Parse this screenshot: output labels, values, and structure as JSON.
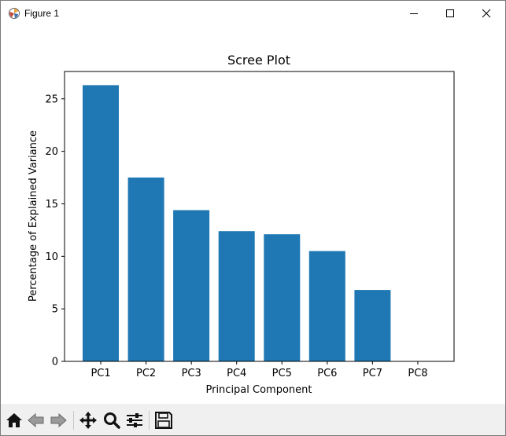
{
  "window": {
    "title": "Figure 1",
    "app_icon": "matplotlib-figure-icon",
    "controls": [
      "minimize-icon",
      "maximize-icon",
      "close-icon"
    ]
  },
  "toolbar": {
    "tools": [
      {
        "name": "home-icon"
      },
      {
        "name": "back-arrow-icon"
      },
      {
        "name": "forward-arrow-icon"
      },
      {
        "name": "pan-move-icon"
      },
      {
        "name": "zoom-magnifier-icon"
      },
      {
        "name": "configure-subplots-icon"
      },
      {
        "name": "save-floppy-icon"
      }
    ]
  },
  "chart_data": {
    "type": "bar",
    "title": "Scree Plot",
    "xlabel": "Principal Component",
    "ylabel": "Percentage of Explained Variance",
    "categories": [
      "PC1",
      "PC2",
      "PC3",
      "PC4",
      "PC5",
      "PC6",
      "PC7",
      "PC8"
    ],
    "values": [
      26.3,
      17.5,
      14.4,
      12.4,
      12.1,
      10.5,
      6.8,
      0.0
    ],
    "ylim": [
      0,
      27.6
    ],
    "yticks": [
      0,
      5,
      10,
      15,
      20,
      25
    ],
    "grid": false,
    "bar_color": "#1f77b4"
  }
}
